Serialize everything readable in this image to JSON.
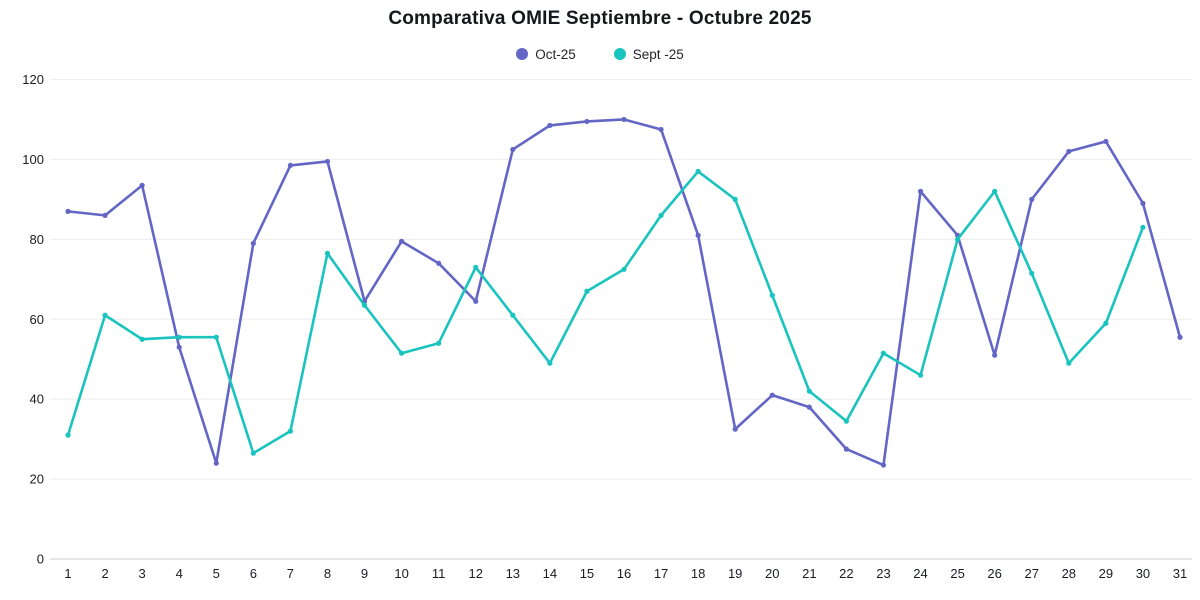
{
  "title": "Comparativa OMIE Septiembre - Octubre 2025",
  "legend": [
    {
      "label": "Oct-25",
      "color": "#6366c4"
    },
    {
      "label": "Sept -25",
      "color": "#19c4be"
    }
  ],
  "colors": {
    "oct_line": "#6366c4",
    "sept_line": "#19c4be",
    "gridline": "#ededed",
    "axis_line": "#cccccc",
    "tick_text": "#1b1d22"
  },
  "chart_data": {
    "type": "line",
    "title": "Comparativa OMIE Septiembre - Octubre 2025",
    "xlabel": "",
    "ylabel": "",
    "x": [
      1,
      2,
      3,
      4,
      5,
      6,
      7,
      8,
      9,
      10,
      11,
      12,
      13,
      14,
      15,
      16,
      17,
      18,
      19,
      20,
      21,
      22,
      23,
      24,
      25,
      26,
      27,
      28,
      29,
      30,
      31
    ],
    "ylim": [
      0,
      120
    ],
    "yticks": [
      0,
      20,
      40,
      60,
      80,
      100,
      120
    ],
    "grid": true,
    "legend_position": "top",
    "series": [
      {
        "name": "Oct-25",
        "color": "#6366c4",
        "values": [
          87,
          86,
          93.5,
          53,
          24,
          79,
          98.5,
          99.5,
          64.5,
          79.5,
          74,
          64.5,
          102.5,
          108.5,
          109.5,
          110,
          107.5,
          81,
          32.5,
          41,
          38,
          27.5,
          23.5,
          92,
          81,
          51,
          90,
          102,
          104.5,
          89,
          55.5
        ]
      },
      {
        "name": "Sept -25",
        "color": "#19c4be",
        "values": [
          31,
          61,
          55,
          55.5,
          55.5,
          26.5,
          32,
          76.5,
          63.5,
          51.5,
          54,
          73,
          61,
          49,
          67,
          72.5,
          86,
          97,
          90,
          66,
          42,
          34.5,
          51.5,
          46,
          80,
          92,
          71.5,
          49,
          59,
          83
        ]
      }
    ]
  }
}
